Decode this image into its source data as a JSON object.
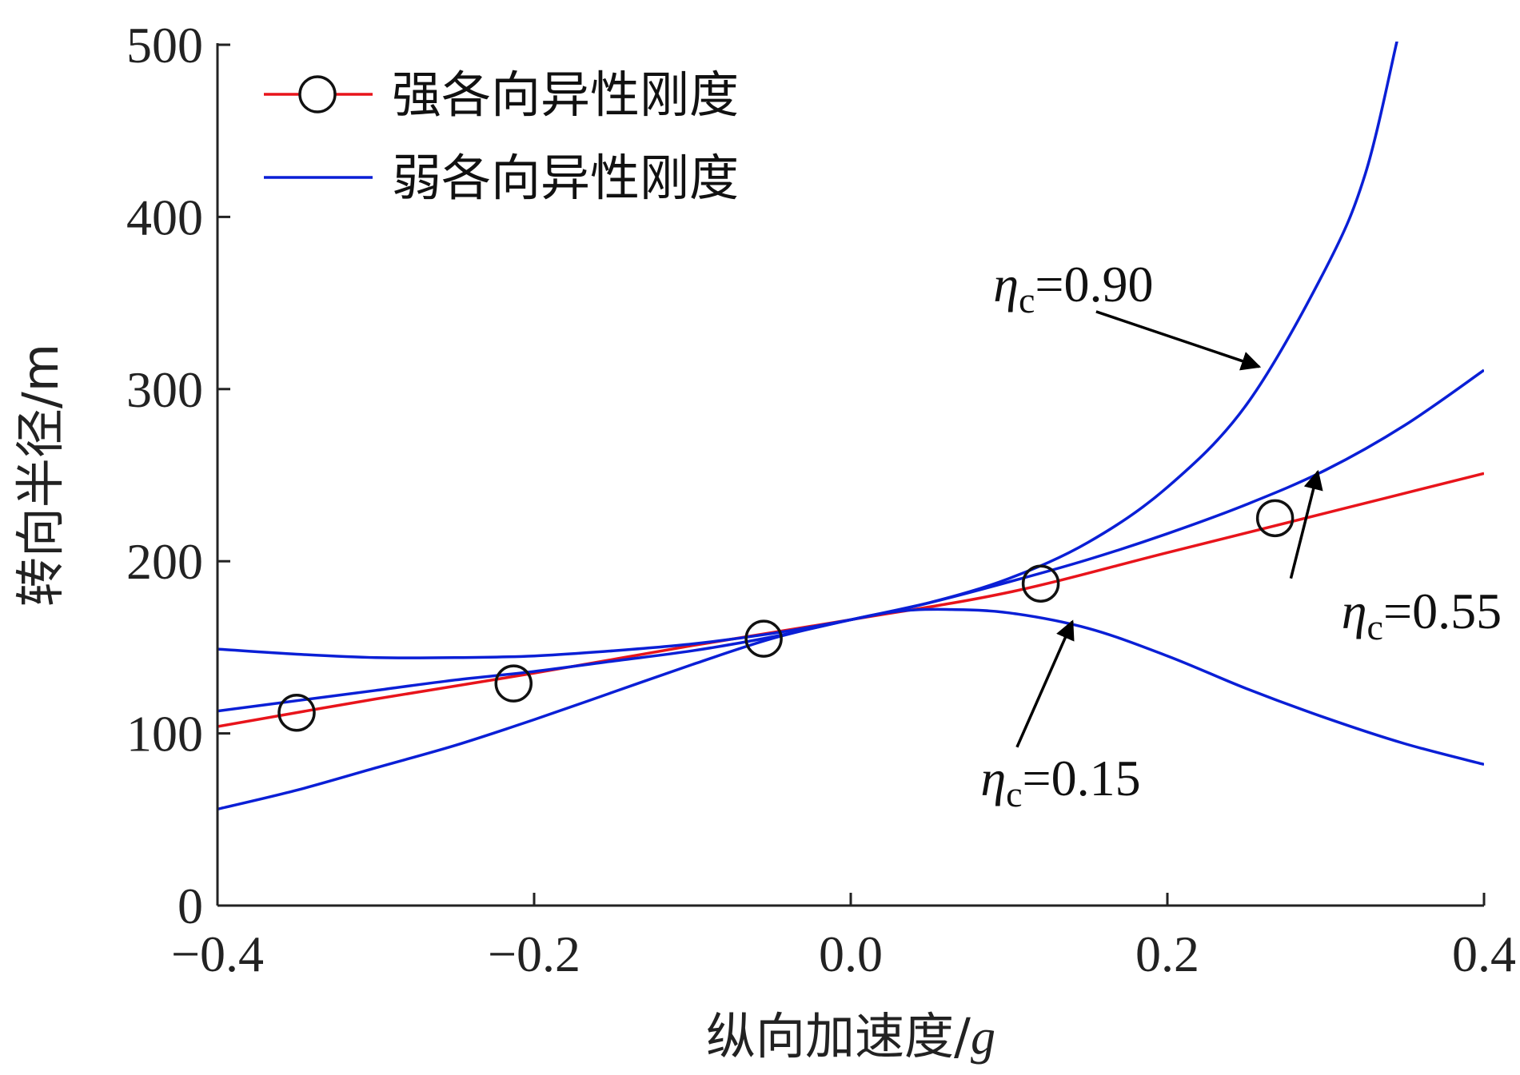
{
  "chart_data": {
    "type": "line",
    "xlabel": "纵向加速度/",
    "xlabel_italic_suffix": "g",
    "ylabel": "转向半径/m",
    "xlim": [
      -0.4,
      0.4
    ],
    "ylim": [
      0,
      500
    ],
    "x_ticks": [
      -0.4,
      -0.2,
      0.0,
      0.2,
      0.4
    ],
    "x_tick_labels": [
      "−0.4",
      "−0.2",
      "0.0",
      "0.2",
      "0.4"
    ],
    "y_ticks": [
      0,
      100,
      200,
      300,
      400,
      500
    ],
    "y_tick_labels": [
      "0",
      "100",
      "200",
      "300",
      "400",
      "500"
    ],
    "grid": false,
    "legend_position": "top-left",
    "legend": [
      {
        "label": "强各向异性刚度",
        "color": "#e8141b",
        "marker": "circle"
      },
      {
        "label": "弱各向异性刚度",
        "color": "#0a1fd6",
        "marker": "none"
      }
    ],
    "series": [
      {
        "name": "强各向异性刚度",
        "color": "#e8141b",
        "x": [
          -0.4,
          -0.3,
          -0.2,
          -0.1,
          0.0,
          0.1,
          0.2,
          0.3,
          0.4
        ],
        "y": [
          104,
          120,
          135,
          151,
          166,
          182,
          205,
          228,
          251
        ]
      },
      {
        "name": "强各向异性刚度",
        "color": "#111111",
        "marker_only": true,
        "x": [
          -0.35,
          -0.213,
          -0.055,
          0.12,
          0.268
        ],
        "y": [
          112,
          129,
          155,
          187,
          225
        ]
      },
      {
        "name": "ηc=0.90",
        "color": "#0a1fd6",
        "x": [
          -0.4,
          -0.35,
          -0.3,
          -0.25,
          -0.2,
          -0.15,
          -0.1,
          -0.05,
          0.0,
          0.05,
          0.1,
          0.15,
          0.2,
          0.25,
          0.3,
          0.325,
          0.345
        ],
        "y": [
          149,
          146,
          144,
          144,
          145,
          148,
          152,
          158,
          166,
          176,
          190,
          211,
          243,
          291,
          370,
          425,
          502
        ]
      },
      {
        "name": "ηc=0.55",
        "color": "#0a1fd6",
        "x": [
          -0.4,
          -0.35,
          -0.3,
          -0.25,
          -0.2,
          -0.15,
          -0.1,
          -0.05,
          0.0,
          0.05,
          0.1,
          0.15,
          0.2,
          0.25,
          0.3,
          0.35,
          0.4
        ],
        "y": [
          113,
          119,
          125,
          131,
          136,
          142,
          148,
          156,
          166,
          176,
          188,
          201,
          216,
          233,
          253,
          279,
          311
        ]
      },
      {
        "name": "ηc=0.15",
        "color": "#0a1fd6",
        "x": [
          -0.4,
          -0.35,
          -0.3,
          -0.25,
          -0.2,
          -0.15,
          -0.1,
          -0.05,
          0.0,
          0.03,
          0.06,
          0.1,
          0.15,
          0.2,
          0.25,
          0.3,
          0.35,
          0.4
        ],
        "y": [
          56,
          67,
          80,
          93,
          108,
          124,
          140,
          155,
          166,
          171,
          172,
          170,
          161,
          145,
          126,
          109,
          94,
          82
        ]
      }
    ],
    "annotations": [
      {
        "symbol": "η",
        "sub": "c",
        "text": "=0.90",
        "label_x": 0.09,
        "label_y": 351,
        "arrow_from": [
          0.155,
          345
        ],
        "arrow_to": [
          0.258,
          313
        ]
      },
      {
        "symbol": "η",
        "sub": "c",
        "text": "=0.55",
        "label_x": 0.31,
        "label_y": 161,
        "arrow_from": [
          0.278,
          190
        ],
        "arrow_to": [
          0.295,
          252
        ]
      },
      {
        "symbol": "η",
        "sub": "c",
        "text": "=0.15",
        "label_x": 0.082,
        "label_y": 64,
        "arrow_from": [
          0.105,
          92
        ],
        "arrow_to": [
          0.14,
          165
        ]
      }
    ]
  }
}
